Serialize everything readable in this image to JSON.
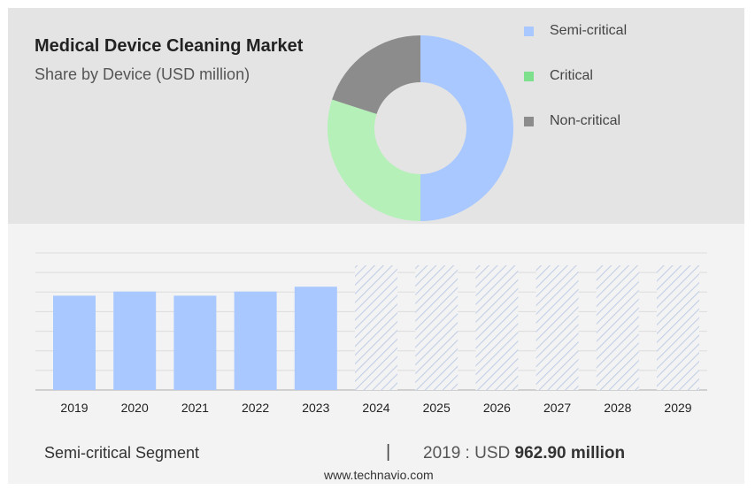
{
  "header": {
    "title": "Medical Device Cleaning Market",
    "subtitle": "Share by Device (USD million)"
  },
  "legend": [
    {
      "label": "Semi-critical",
      "color": "#a9c8ff"
    },
    {
      "label": "Critical",
      "color": "#7ee08c"
    },
    {
      "label": "Non-critical",
      "color": "#8c8c8c"
    }
  ],
  "footer": {
    "segment_label": "Semi-critical Segment",
    "divider": "|",
    "year_prefix": "2019 : USD",
    "value_text": "962.90 million",
    "source": "www.technavio.com"
  },
  "chart_data": [
    {
      "type": "pie",
      "style": "donut",
      "title": "Share by Device (USD million)",
      "labels": [
        "Semi-critical",
        "Critical",
        "Non-critical"
      ],
      "values": [
        50,
        30,
        20
      ],
      "colors": [
        "#a9c8ff",
        "#b5f0b8",
        "#8c8c8c"
      ]
    },
    {
      "type": "bar",
      "title": "Semi-critical Segment",
      "categories": [
        "2019",
        "2020",
        "2021",
        "2022",
        "2023",
        "2024",
        "2025",
        "2026",
        "2027",
        "2028",
        "2029"
      ],
      "values": [
        962.9,
        1005,
        962.9,
        1005,
        1055,
        null,
        null,
        null,
        null,
        null,
        null
      ],
      "forecast_categories": [
        "2024",
        "2025",
        "2026",
        "2027",
        "2028",
        "2029"
      ],
      "ylim": [
        0,
        1400
      ],
      "grid": true,
      "bar_color": "#a9c8ff",
      "forecast_style": "hatched"
    }
  ]
}
